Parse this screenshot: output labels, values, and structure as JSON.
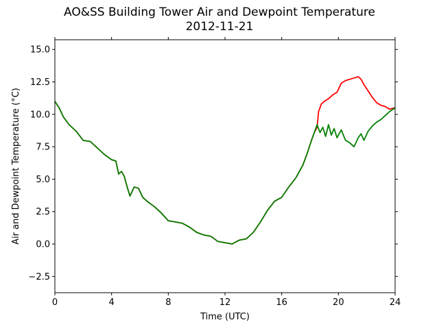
{
  "chart_data": {
    "type": "line",
    "title": "AO&SS Building Tower Air and Dewpoint Temperature",
    "subtitle": "2012-11-21",
    "xlabel": "Time (UTC)",
    "ylabel": "Air and Dewpoint Temperature (°C)",
    "xlim": [
      0,
      24
    ],
    "ylim": [
      -3.75,
      15.75
    ],
    "xticks": [
      0,
      4,
      8,
      12,
      16,
      20,
      24
    ],
    "yticks": [
      -2.5,
      0.0,
      2.5,
      5.0,
      7.5,
      10.0,
      12.5,
      15.0
    ],
    "ytick_labels": [
      "−2.5",
      "0.0",
      "2.5",
      "5.0",
      "7.5",
      "10.0",
      "12.5",
      "15.0"
    ],
    "grid": false,
    "legend": "none",
    "series": [
      {
        "color": "#ff0000",
        "x": [
          0,
          0.3,
          0.6,
          1.0,
          1.5,
          2.0,
          2.5,
          3.0,
          3.5,
          4.0,
          4.3,
          4.5,
          4.7,
          4.9,
          5.1,
          5.3,
          5.6,
          5.9,
          6.2,
          6.5,
          7.0,
          7.5,
          8.0,
          8.5,
          9.0,
          9.5,
          10.0,
          10.5,
          11.0,
          11.5,
          12.0,
          12.5,
          13.0,
          13.5,
          14.0,
          14.5,
          15.0,
          15.5,
          16.0,
          16.5,
          17.0,
          17.5,
          17.8,
          18.1,
          18.3,
          18.5,
          18.6,
          18.8,
          19.0,
          19.3,
          19.6,
          19.9,
          20.2,
          20.5,
          20.8,
          21.1,
          21.4,
          21.6,
          21.8,
          22.1,
          22.4,
          22.7,
          23.0,
          23.3,
          23.6,
          24.0
        ],
        "y": [
          11.0,
          10.5,
          9.8,
          9.2,
          8.7,
          8.0,
          7.9,
          7.4,
          6.9,
          6.5,
          6.4,
          5.4,
          5.6,
          5.2,
          4.4,
          3.7,
          4.4,
          4.3,
          3.6,
          3.3,
          2.9,
          2.4,
          1.8,
          1.7,
          1.6,
          1.3,
          0.9,
          0.7,
          0.6,
          0.2,
          0.1,
          0.0,
          0.3,
          0.4,
          0.9,
          1.7,
          2.6,
          3.3,
          3.6,
          4.4,
          5.1,
          6.1,
          7.0,
          8.0,
          8.6,
          9.0,
          10.2,
          10.8,
          11.0,
          11.2,
          11.5,
          11.7,
          12.4,
          12.6,
          12.7,
          12.8,
          12.9,
          12.7,
          12.3,
          11.8,
          11.3,
          10.9,
          10.7,
          10.6,
          10.4,
          10.5
        ]
      },
      {
        "color": "#008000",
        "x": [
          0,
          0.3,
          0.6,
          1.0,
          1.5,
          2.0,
          2.5,
          3.0,
          3.5,
          4.0,
          4.3,
          4.5,
          4.7,
          4.9,
          5.1,
          5.3,
          5.6,
          5.9,
          6.2,
          6.5,
          7.0,
          7.5,
          8.0,
          8.5,
          9.0,
          9.5,
          10.0,
          10.5,
          11.0,
          11.5,
          12.0,
          12.5,
          13.0,
          13.5,
          14.0,
          14.5,
          15.0,
          15.5,
          16.0,
          16.5,
          17.0,
          17.5,
          17.8,
          18.1,
          18.3,
          18.5,
          18.7,
          18.9,
          19.1,
          19.3,
          19.5,
          19.7,
          19.9,
          20.2,
          20.5,
          20.8,
          21.1,
          21.4,
          21.6,
          21.8,
          22.1,
          22.4,
          22.7,
          23.0,
          23.3,
          23.6,
          24.0
        ],
        "y": [
          11.0,
          10.5,
          9.8,
          9.2,
          8.7,
          8.0,
          7.9,
          7.4,
          6.9,
          6.5,
          6.4,
          5.4,
          5.6,
          5.2,
          4.4,
          3.7,
          4.4,
          4.3,
          3.6,
          3.3,
          2.9,
          2.4,
          1.8,
          1.7,
          1.6,
          1.3,
          0.9,
          0.7,
          0.6,
          0.2,
          0.1,
          0.0,
          0.3,
          0.4,
          0.9,
          1.7,
          2.6,
          3.3,
          3.6,
          4.4,
          5.1,
          6.1,
          7.0,
          8.0,
          8.6,
          9.2,
          8.6,
          9.0,
          8.3,
          9.2,
          8.4,
          8.9,
          8.2,
          8.8,
          8.0,
          7.8,
          7.5,
          8.2,
          8.5,
          8.0,
          8.7,
          9.1,
          9.4,
          9.6,
          9.9,
          10.2,
          10.5
        ]
      }
    ]
  }
}
